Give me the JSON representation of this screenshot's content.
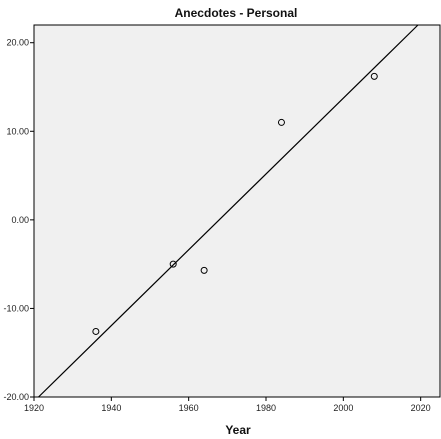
{
  "chart_data": {
    "type": "scatter",
    "title": "Anecdotes - Personal",
    "xlabel": "Year",
    "ylabel": "",
    "xlim": [
      1920,
      2025
    ],
    "ylim": [
      -20,
      22
    ],
    "x_ticks": [
      1920,
      1940,
      1960,
      1980,
      2000,
      2020
    ],
    "x_tick_labels": [
      "1920",
      "1940",
      "1960",
      "1980",
      "2000",
      "2020"
    ],
    "y_ticks": [
      20,
      10,
      0,
      -10,
      -20
    ],
    "y_tick_labels": [
      "20.00",
      "10.00",
      "0.00",
      "-10.00",
      "-20.00"
    ],
    "grid": false,
    "legend": "none",
    "series": [
      {
        "points": [
          {
            "x": 1936,
            "y": -12.6
          },
          {
            "x": 1956,
            "y": -5.0
          },
          {
            "x": 1964,
            "y": -5.7
          },
          {
            "x": 1984,
            "y": 11.0
          },
          {
            "x": 2008,
            "y": 16.2
          }
        ]
      }
    ],
    "fit_line": {
      "x": [
        1920,
        2020
      ],
      "y": [
        -20.5,
        22.3
      ]
    },
    "colors": {
      "plot_background": "#f0f0f0",
      "marks": "#000000"
    }
  }
}
